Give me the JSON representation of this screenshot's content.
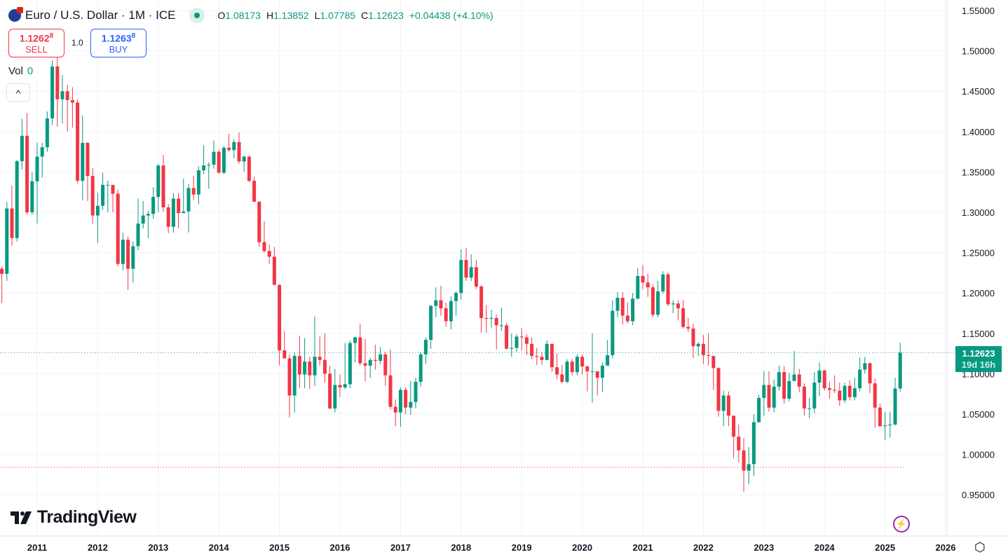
{
  "header": {
    "symbol": "Euro / U.S. Dollar · 1M · ICE",
    "o_label": "O",
    "o": "1.08173",
    "h_label": "H",
    "h": "1.13852",
    "l_label": "L",
    "l": "1.07785",
    "c_label": "C",
    "c": "1.12623",
    "change": "+0.04438 (+4.10%)"
  },
  "trade": {
    "sell_price": "1.1262",
    "sell_sup": "8",
    "sell_label": "SELL",
    "spread": "1.0",
    "buy_price": "1.1263",
    "buy_sup": "8",
    "buy_label": "BUY"
  },
  "volume": {
    "label": "Vol",
    "value": "0"
  },
  "collapse_icon": "^",
  "logo": "TradingView",
  "price_tag": {
    "price": "1.12623",
    "countdown": "19d 16h"
  },
  "colors": {
    "up": "#089981",
    "down": "#f23645",
    "grid": "#f0f3fa"
  },
  "chart_data": {
    "type": "candlestick",
    "interval": "1M",
    "start": "2010-06",
    "first_open": 1.23,
    "y_ticks": [
      "1.55000",
      "1.50000",
      "1.45000",
      "1.40000",
      "1.35000",
      "1.30000",
      "1.25000",
      "1.20000",
      "1.15000",
      "1.10000",
      "1.05000",
      "1.00000",
      "0.95000"
    ],
    "ylim": [
      0.95,
      1.55
    ],
    "x_ticks": [
      "2011",
      "2012",
      "2013",
      "2014",
      "2015",
      "2016",
      "2017",
      "2018",
      "2019",
      "2020",
      "2021",
      "2022",
      "2023",
      "2024",
      "2025",
      "2026"
    ],
    "reference_line": 0.984,
    "close": [
      1.2237,
      1.3047,
      1.2681,
      1.3633,
      1.3948,
      1.3,
      1.3384,
      1.369,
      1.3806,
      1.4164,
      1.4807,
      1.44,
      1.45,
      1.439,
      1.436,
      1.339,
      1.386,
      1.345,
      1.296,
      1.308,
      1.334,
      1.334,
      1.323,
      1.236,
      1.266,
      1.23,
      1.258,
      1.286,
      1.296,
      1.298,
      1.319,
      1.358,
      1.306,
      1.282,
      1.317,
      1.299,
      1.301,
      1.33,
      1.322,
      1.352,
      1.358,
      1.359,
      1.375,
      1.349,
      1.38,
      1.377,
      1.387,
      1.363,
      1.369,
      1.339,
      1.313,
      1.263,
      1.252,
      1.245,
      1.21,
      1.129,
      1.119,
      1.073,
      1.122,
      1.099,
      1.115,
      1.098,
      1.121,
      1.117,
      1.1,
      1.057,
      1.086,
      1.083,
      1.087,
      1.138,
      1.145,
      1.113,
      1.11,
      1.117,
      1.116,
      1.124,
      1.098,
      1.059,
      1.052,
      1.08,
      1.058,
      1.065,
      1.09,
      1.124,
      1.142,
      1.184,
      1.191,
      1.181,
      1.165,
      1.19,
      1.2,
      1.241,
      1.219,
      1.232,
      1.208,
      1.169,
      1.168,
      1.169,
      1.16,
      1.16,
      1.131,
      1.132,
      1.146,
      1.145,
      1.137,
      1.122,
      1.121,
      1.117,
      1.137,
      1.108,
      1.099,
      1.09,
      1.115,
      1.102,
      1.121,
      1.109,
      1.103,
      1.103,
      1.095,
      1.11,
      1.123,
      1.178,
      1.194,
      1.172,
      1.165,
      1.193,
      1.221,
      1.213,
      1.207,
      1.173,
      1.202,
      1.223,
      1.186,
      1.187,
      1.181,
      1.158,
      1.156,
      1.134,
      1.137,
      1.123,
      1.122,
      1.107,
      1.054,
      1.073,
      1.048,
      1.022,
      1.005,
      0.98,
      0.988,
      1.04,
      1.07,
      1.086,
      1.058,
      1.084,
      1.102,
      1.069,
      1.091,
      1.099,
      1.084,
      1.057,
      1.057,
      1.089,
      1.104,
      1.082,
      1.08,
      1.079,
      1.067,
      1.085,
      1.071,
      1.082,
      1.105,
      1.113,
      1.088,
      1.058,
      1.035,
      1.036,
      1.037,
      1.08173,
      1.12623
    ],
    "high": [
      1.233,
      1.3128,
      1.3333,
      1.365,
      1.4157,
      1.423,
      1.35,
      1.3863,
      1.3861,
      1.425,
      1.4882,
      1.494,
      1.47,
      1.458,
      1.455,
      1.44,
      1.42,
      1.387,
      1.355,
      1.324,
      1.349,
      1.339,
      1.33,
      1.328,
      1.275,
      1.27,
      1.264,
      1.317,
      1.314,
      1.302,
      1.331,
      1.36,
      1.371,
      1.31,
      1.324,
      1.324,
      1.342,
      1.335,
      1.345,
      1.357,
      1.383,
      1.362,
      1.389,
      1.377,
      1.382,
      1.397,
      1.39,
      1.399,
      1.37,
      1.37,
      1.344,
      1.314,
      1.289,
      1.26,
      1.257,
      1.211,
      1.153,
      1.124,
      1.126,
      1.147,
      1.144,
      1.121,
      1.171,
      1.146,
      1.15,
      1.11,
      1.106,
      1.099,
      1.138,
      1.141,
      1.146,
      1.162,
      1.143,
      1.12,
      1.136,
      1.133,
      1.127,
      1.13,
      1.068,
      1.083,
      1.083,
      1.091,
      1.095,
      1.127,
      1.145,
      1.185,
      1.207,
      1.209,
      1.188,
      1.196,
      1.202,
      1.254,
      1.256,
      1.248,
      1.241,
      1.21,
      1.185,
      1.179,
      1.173,
      1.182,
      1.163,
      1.15,
      1.149,
      1.157,
      1.149,
      1.145,
      1.132,
      1.127,
      1.141,
      1.129,
      1.125,
      1.111,
      1.118,
      1.118,
      1.124,
      1.124,
      1.11,
      1.15,
      1.1,
      1.114,
      1.142,
      1.191,
      1.201,
      1.201,
      1.188,
      1.2,
      1.231,
      1.235,
      1.224,
      1.211,
      1.215,
      1.227,
      1.225,
      1.191,
      1.191,
      1.191,
      1.169,
      1.162,
      1.139,
      1.148,
      1.15,
      1.119,
      1.108,
      1.079,
      1.078,
      1.048,
      1.037,
      1.02,
      1.009,
      1.05,
      1.074,
      1.103,
      1.103,
      1.093,
      1.11,
      1.109,
      1.101,
      1.128,
      1.106,
      1.088,
      1.07,
      1.102,
      1.114,
      1.105,
      1.09,
      1.098,
      1.089,
      1.089,
      1.092,
      1.095,
      1.12,
      1.121,
      1.114,
      1.094,
      1.063,
      1.053,
      1.053,
      1.095,
      1.13852
    ],
    "low": [
      1.1876,
      1.215,
      1.2587,
      1.264,
      1.353,
      1.2967,
      1.2969,
      1.2861,
      1.343,
      1.375,
      1.408,
      1.406,
      1.41,
      1.4,
      1.405,
      1.336,
      1.315,
      1.314,
      1.286,
      1.262,
      1.303,
      1.3,
      1.3,
      1.233,
      1.228,
      1.204,
      1.213,
      1.253,
      1.28,
      1.268,
      1.292,
      1.3,
      1.301,
      1.274,
      1.275,
      1.28,
      1.299,
      1.275,
      1.315,
      1.31,
      1.347,
      1.329,
      1.354,
      1.348,
      1.347,
      1.375,
      1.367,
      1.36,
      1.35,
      1.337,
      1.315,
      1.257,
      1.25,
      1.236,
      1.21,
      1.11,
      1.126,
      1.046,
      1.052,
      1.082,
      1.082,
      1.081,
      1.085,
      1.11,
      1.089,
      1.056,
      1.052,
      1.071,
      1.081,
      1.082,
      1.114,
      1.11,
      1.091,
      1.095,
      1.105,
      1.112,
      1.085,
      1.056,
      1.035,
      1.034,
      1.05,
      1.049,
      1.057,
      1.084,
      1.112,
      1.131,
      1.17,
      1.172,
      1.158,
      1.155,
      1.172,
      1.192,
      1.215,
      1.215,
      1.205,
      1.151,
      1.151,
      1.157,
      1.13,
      1.153,
      1.13,
      1.121,
      1.127,
      1.129,
      1.123,
      1.118,
      1.111,
      1.111,
      1.118,
      1.102,
      1.093,
      1.088,
      1.088,
      1.098,
      1.098,
      1.099,
      1.078,
      1.064,
      1.073,
      1.077,
      1.111,
      1.119,
      1.17,
      1.161,
      1.162,
      1.16,
      1.192,
      1.205,
      1.195,
      1.17,
      1.17,
      1.199,
      1.184,
      1.175,
      1.166,
      1.156,
      1.152,
      1.119,
      1.122,
      1.112,
      1.11,
      1.08,
      1.047,
      1.035,
      1.035,
      0.995,
      0.99,
      0.954,
      0.963,
      0.973,
      1.039,
      1.048,
      1.053,
      1.052,
      1.079,
      1.063,
      1.066,
      1.091,
      1.077,
      1.048,
      1.045,
      1.051,
      1.072,
      1.079,
      1.069,
      1.076,
      1.06,
      1.064,
      1.067,
      1.067,
      1.078,
      1.1,
      1.076,
      1.033,
      1.034,
      1.018,
      1.021,
      1.036,
      1.07785
    ]
  }
}
